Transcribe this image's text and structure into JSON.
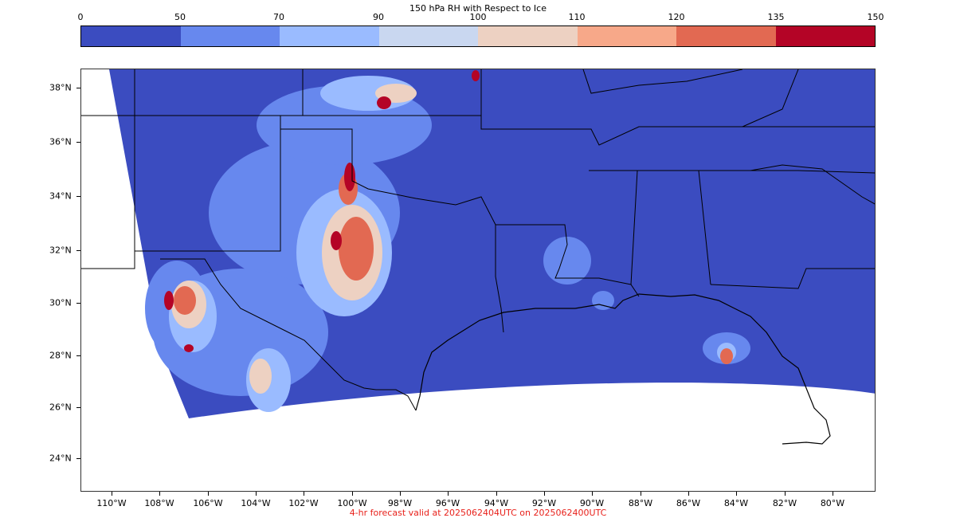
{
  "colorbar": {
    "title": "150 hPa RH with Respect to Ice",
    "ticks": [
      "0",
      "50",
      "70",
      "90",
      "100",
      "110",
      "120",
      "135",
      "150"
    ],
    "colors": [
      "#3b4cc0",
      "#6788ee",
      "#9abbff",
      "#c9d7f0",
      "#edd1c2",
      "#f7a889",
      "#e26952",
      "#b40426"
    ]
  },
  "map": {
    "lat_labels": [
      "38°N",
      "36°N",
      "34°N",
      "32°N",
      "30°N",
      "28°N",
      "26°N",
      "24°N"
    ],
    "lon_labels": [
      "110°W",
      "108°W",
      "106°W",
      "104°W",
      "102°W",
      "100°W",
      "98°W",
      "96°W",
      "94°W",
      "92°W",
      "90°W",
      "88°W",
      "86°W",
      "84°W",
      "82°W",
      "80°W"
    ],
    "background_color": "#3b4cc0",
    "no_data_color": "#ffffff",
    "border_color": "#000000"
  },
  "footer": {
    "text": "4-hr forecast valid at 2025062404UTC on 2025062400UTC",
    "color": "#e8211b"
  }
}
